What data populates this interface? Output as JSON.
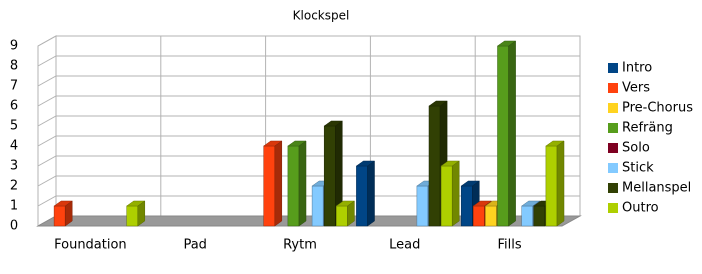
{
  "chart_data": {
    "type": "bar3d",
    "title": "Klockspel",
    "categories": [
      "Foundation",
      "Pad",
      "Rytm",
      "Lead",
      "Fills"
    ],
    "series": [
      {
        "name": "Intro",
        "color": "#004586",
        "values": [
          0,
          0,
          0,
          3,
          2
        ]
      },
      {
        "name": "Vers",
        "color": "#ff420e",
        "values": [
          1,
          0,
          4,
          0,
          1
        ]
      },
      {
        "name": "Pre-Chorus",
        "color": "#ffd320",
        "values": [
          0,
          0,
          0,
          0,
          1
        ]
      },
      {
        "name": "Refräng",
        "color": "#579d1c",
        "values": [
          0,
          0,
          4,
          0,
          9
        ]
      },
      {
        "name": "Solo",
        "color": "#7e0021",
        "values": [
          0,
          0,
          0,
          0,
          0
        ]
      },
      {
        "name": "Stick",
        "color": "#83caff",
        "values": [
          0,
          0,
          2,
          2,
          1
        ]
      },
      {
        "name": "Mellanspel",
        "color": "#314004",
        "values": [
          0,
          0,
          5,
          6,
          1
        ]
      },
      {
        "name": "Outro",
        "color": "#aecf00",
        "values": [
          1,
          0,
          1,
          3,
          4
        ]
      }
    ],
    "ylim": [
      0,
      9
    ],
    "yticks": [
      0,
      1,
      2,
      3,
      4,
      5,
      6,
      7,
      8,
      9
    ],
    "grid": true,
    "legend": "right"
  }
}
